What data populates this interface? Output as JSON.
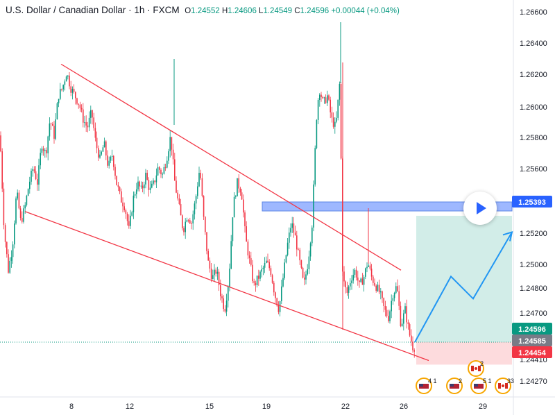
{
  "header": {
    "symbol": "U.S. Dollar / Canadian Dollar · 1h · FXCM",
    "open_label": "O",
    "open": "1.24552",
    "high_label": "H",
    "high": "1.24606",
    "low_label": "L",
    "low": "1.24549",
    "close_label": "C",
    "close": "1.24596",
    "change": "+0.00044 (+0.04%)"
  },
  "chart_data": {
    "type": "candlestick",
    "title": "U.S. Dollar / Canadian Dollar · 1h · FXCM",
    "ylim": [
      1.2425,
      1.2668
    ],
    "x_tick_labels": [
      "8",
      "12",
      "15",
      "19",
      "22",
      "26",
      "29"
    ],
    "y_tick_labels": [
      "1.26600",
      "1.26400",
      "1.26200",
      "1.26000",
      "1.25800",
      "1.25600",
      "1.25200",
      "1.25000",
      "1.24800",
      "1.24700",
      "1.24410",
      "1.24270"
    ],
    "price_labels": [
      {
        "value": "1.25393",
        "color": "#2962ff"
      },
      {
        "value": "1.24596",
        "color": "#089981"
      },
      {
        "value": "1.24585",
        "color": "#787b86"
      },
      {
        "value": "1.24454",
        "color": "#f23645"
      }
    ],
    "price_points": [
      [
        0,
        1.259
      ],
      [
        6,
        1.253
      ],
      [
        12,
        1.2505
      ],
      [
        18,
        1.252
      ],
      [
        24,
        1.2555
      ],
      [
        30,
        1.2535
      ],
      [
        36,
        1.2545
      ],
      [
        42,
        1.256
      ],
      [
        48,
        1.257
      ],
      [
        54,
        1.256
      ],
      [
        60,
        1.2585
      ],
      [
        66,
        1.2578
      ],
      [
        72,
        1.26
      ],
      [
        78,
        1.259
      ],
      [
        84,
        1.2615
      ],
      [
        90,
        1.262
      ],
      [
        96,
        1.263
      ],
      [
        102,
        1.262
      ],
      [
        108,
        1.2615
      ],
      [
        114,
        1.261
      ],
      [
        120,
        1.26
      ],
      [
        126,
        1.2595
      ],
      [
        132,
        1.2605
      ],
      [
        138,
        1.2585
      ],
      [
        144,
        1.2575
      ],
      [
        150,
        1.2585
      ],
      [
        156,
        1.257
      ],
      [
        162,
        1.2578
      ],
      [
        168,
        1.256
      ],
      [
        174,
        1.255
      ],
      [
        180,
        1.2545
      ],
      [
        186,
        1.253
      ],
      [
        192,
        1.255
      ],
      [
        198,
        1.256
      ],
      [
        204,
        1.2555
      ],
      [
        210,
        1.2565
      ],
      [
        216,
        1.2555
      ],
      [
        222,
        1.256
      ],
      [
        228,
        1.257
      ],
      [
        234,
        1.2565
      ],
      [
        240,
        1.2575
      ],
      [
        246,
        1.259
      ],
      [
        252,
        1.256
      ],
      [
        258,
        1.2545
      ],
      [
        264,
        1.253
      ],
      [
        270,
        1.254
      ],
      [
        276,
        1.2535
      ],
      [
        282,
        1.255
      ],
      [
        288,
        1.257
      ],
      [
        294,
        1.2535
      ],
      [
        300,
        1.251
      ],
      [
        306,
        1.25
      ],
      [
        312,
        1.2505
      ],
      [
        318,
        1.249
      ],
      [
        324,
        1.248
      ],
      [
        330,
        1.25
      ],
      [
        336,
        1.2545
      ],
      [
        342,
        1.256
      ],
      [
        348,
        1.2555
      ],
      [
        354,
        1.2525
      ],
      [
        360,
        1.251
      ],
      [
        366,
        1.2495
      ],
      [
        372,
        1.25
      ],
      [
        378,
        1.2505
      ],
      [
        384,
        1.251
      ],
      [
        390,
        1.2505
      ],
      [
        396,
        1.249
      ],
      [
        402,
        1.248
      ],
      [
        408,
        1.25
      ],
      [
        414,
        1.252
      ],
      [
        420,
        1.2535
      ],
      [
        426,
        1.2525
      ],
      [
        432,
        1.251
      ],
      [
        438,
        1.2495
      ],
      [
        444,
        1.251
      ],
      [
        450,
        1.2535
      ],
      [
        456,
        1.26
      ],
      [
        460,
        1.262
      ],
      [
        466,
        1.261
      ],
      [
        472,
        1.2615
      ],
      [
        478,
        1.26
      ],
      [
        484,
        1.2595
      ],
      [
        490,
        1.2625
      ],
      [
        494,
        1.25
      ],
      [
        500,
        1.249
      ],
      [
        506,
        1.25
      ],
      [
        512,
        1.2505
      ],
      [
        518,
        1.2495
      ],
      [
        524,
        1.25
      ],
      [
        530,
        1.251
      ],
      [
        536,
        1.25
      ],
      [
        542,
        1.2495
      ],
      [
        548,
        1.249
      ],
      [
        554,
        1.248
      ],
      [
        560,
        1.2475
      ],
      [
        566,
        1.249
      ],
      [
        572,
        1.2495
      ],
      [
        578,
        1.247
      ],
      [
        584,
        1.248
      ],
      [
        590,
        1.2465
      ],
      [
        596,
        1.2455
      ],
      [
        600,
        1.246
      ]
    ],
    "channel_lines": [
      {
        "from": [
          88,
          1.2635
        ],
        "to": [
          578,
          1.2505
        ],
        "color": "#f23645"
      },
      {
        "from": [
          36,
          1.2542
        ],
        "to": [
          618,
          1.2448
        ],
        "color": "#f23645"
      }
    ],
    "resistance_zone": {
      "x_from": 378,
      "x_to": 738,
      "y_from": 1.2539,
      "y_to": 1.2538
    },
    "target_zone": {
      "x_from": 600,
      "x_to": 738,
      "y_from": 1.24596,
      "y_to": 1.25393
    },
    "stop_zone": {
      "x_from": 600,
      "x_to": 738,
      "y_from": 1.24454,
      "y_to": 1.24596
    },
    "projection_path": [
      [
        598,
        1.24596
      ],
      [
        650,
        1.2501
      ],
      [
        682,
        1.2487
      ],
      [
        738,
        1.2529
      ]
    ],
    "event_badges": [
      {
        "label": "4 1",
        "flag": "US"
      },
      {
        "label": "2",
        "flag": "US"
      },
      {
        "label": "5 1",
        "flag": "US"
      },
      {
        "label": "2",
        "flag": "CA"
      },
      {
        "label": "33",
        "flag": "CA"
      }
    ]
  },
  "colors": {
    "bull": "#089981",
    "bear": "#f23645",
    "axis_text": "#131722",
    "price_blue": "#2962ff",
    "projection": "#2196f3",
    "zone_blue": "rgba(41,98,255,0.45)",
    "target": "rgba(8,153,129,0.18)",
    "stop": "rgba(242,54,69,0.18)"
  },
  "icons": {
    "play": "play-icon"
  }
}
